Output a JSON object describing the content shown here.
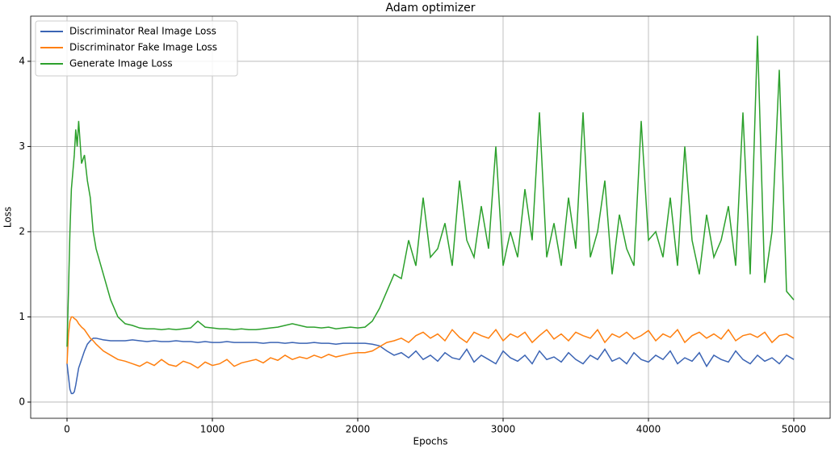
{
  "chart_data": {
    "type": "line",
    "title": "Adam optimizer",
    "x_label": "Epochs",
    "y_label": "Loss",
    "x": [
      0,
      10,
      20,
      30,
      40,
      50,
      60,
      70,
      80,
      100,
      120,
      140,
      160,
      180,
      200,
      250,
      300,
      350,
      400,
      450,
      500,
      550,
      600,
      650,
      700,
      750,
      800,
      850,
      900,
      950,
      1000,
      1050,
      1100,
      1150,
      1200,
      1250,
      1300,
      1350,
      1400,
      1450,
      1500,
      1550,
      1600,
      1650,
      1700,
      1750,
      1800,
      1850,
      1900,
      1950,
      2000,
      2050,
      2100,
      2150,
      2200,
      2250,
      2300,
      2350,
      2400,
      2450,
      2500,
      2550,
      2600,
      2650,
      2700,
      2750,
      2800,
      2850,
      2900,
      2950,
      3000,
      3050,
      3100,
      3150,
      3200,
      3250,
      3300,
      3350,
      3400,
      3450,
      3500,
      3550,
      3600,
      3650,
      3700,
      3750,
      3800,
      3850,
      3900,
      3950,
      4000,
      4050,
      4100,
      4150,
      4200,
      4250,
      4300,
      4350,
      4400,
      4450,
      4500,
      4550,
      4600,
      4650,
      4700,
      4750,
      4800,
      4850,
      4900,
      4950,
      5000
    ],
    "series": [
      {
        "name": "Discriminator Real Image Loss",
        "color": "#3b64b4",
        "values": [
          0.45,
          0.3,
          0.15,
          0.1,
          0.1,
          0.12,
          0.2,
          0.3,
          0.4,
          0.5,
          0.6,
          0.68,
          0.72,
          0.75,
          0.75,
          0.73,
          0.72,
          0.72,
          0.72,
          0.73,
          0.72,
          0.71,
          0.72,
          0.71,
          0.71,
          0.72,
          0.71,
          0.71,
          0.7,
          0.71,
          0.7,
          0.7,
          0.71,
          0.7,
          0.7,
          0.7,
          0.7,
          0.69,
          0.7,
          0.7,
          0.69,
          0.7,
          0.69,
          0.69,
          0.7,
          0.69,
          0.69,
          0.68,
          0.69,
          0.69,
          0.69,
          0.69,
          0.68,
          0.66,
          0.6,
          0.55,
          0.58,
          0.52,
          0.6,
          0.5,
          0.55,
          0.48,
          0.58,
          0.52,
          0.5,
          0.62,
          0.47,
          0.55,
          0.5,
          0.45,
          0.6,
          0.52,
          0.48,
          0.55,
          0.45,
          0.6,
          0.5,
          0.53,
          0.47,
          0.58,
          0.5,
          0.45,
          0.55,
          0.5,
          0.62,
          0.48,
          0.52,
          0.45,
          0.58,
          0.5,
          0.47,
          0.55,
          0.5,
          0.6,
          0.45,
          0.52,
          0.48,
          0.58,
          0.42,
          0.55,
          0.5,
          0.47,
          0.6,
          0.5,
          0.45,
          0.55,
          0.48,
          0.52,
          0.45,
          0.55,
          0.5
        ]
      },
      {
        "name": "Discriminator Fake Image Loss",
        "color": "#ff7f0e",
        "values": [
          0.45,
          0.8,
          0.95,
          1.0,
          1.0,
          0.98,
          0.97,
          0.95,
          0.92,
          0.88,
          0.85,
          0.8,
          0.75,
          0.72,
          0.68,
          0.6,
          0.55,
          0.5,
          0.48,
          0.45,
          0.42,
          0.47,
          0.43,
          0.5,
          0.44,
          0.42,
          0.48,
          0.45,
          0.4,
          0.47,
          0.43,
          0.45,
          0.5,
          0.42,
          0.46,
          0.48,
          0.5,
          0.46,
          0.52,
          0.49,
          0.55,
          0.5,
          0.53,
          0.51,
          0.55,
          0.52,
          0.56,
          0.53,
          0.55,
          0.57,
          0.58,
          0.58,
          0.6,
          0.65,
          0.7,
          0.72,
          0.75,
          0.7,
          0.78,
          0.82,
          0.75,
          0.8,
          0.72,
          0.85,
          0.76,
          0.7,
          0.82,
          0.78,
          0.75,
          0.85,
          0.72,
          0.8,
          0.76,
          0.82,
          0.7,
          0.78,
          0.85,
          0.74,
          0.8,
          0.72,
          0.82,
          0.78,
          0.75,
          0.85,
          0.7,
          0.8,
          0.76,
          0.82,
          0.74,
          0.78,
          0.84,
          0.72,
          0.8,
          0.76,
          0.85,
          0.7,
          0.78,
          0.82,
          0.75,
          0.8,
          0.74,
          0.85,
          0.72,
          0.78,
          0.8,
          0.76,
          0.82,
          0.7,
          0.78,
          0.8,
          0.75
        ]
      },
      {
        "name": "Generate Image Loss",
        "color": "#2ca02c",
        "values": [
          0.65,
          1.3,
          2.0,
          2.5,
          2.7,
          2.9,
          3.2,
          3.0,
          3.3,
          2.8,
          2.9,
          2.6,
          2.4,
          2.0,
          1.8,
          1.5,
          1.2,
          1.0,
          0.92,
          0.9,
          0.87,
          0.86,
          0.86,
          0.85,
          0.86,
          0.85,
          0.86,
          0.87,
          0.95,
          0.88,
          0.87,
          0.86,
          0.86,
          0.85,
          0.86,
          0.85,
          0.85,
          0.86,
          0.87,
          0.88,
          0.9,
          0.92,
          0.9,
          0.88,
          0.88,
          0.87,
          0.88,
          0.86,
          0.87,
          0.88,
          0.87,
          0.88,
          0.95,
          1.1,
          1.3,
          1.5,
          1.45,
          1.9,
          1.6,
          2.4,
          1.7,
          1.8,
          2.1,
          1.6,
          2.6,
          1.9,
          1.7,
          2.3,
          1.8,
          3.0,
          1.6,
          2.0,
          1.7,
          2.5,
          1.9,
          3.4,
          1.7,
          2.1,
          1.6,
          2.4,
          1.8,
          3.4,
          1.7,
          2.0,
          2.6,
          1.5,
          2.2,
          1.8,
          1.6,
          3.3,
          1.9,
          2.0,
          1.7,
          2.4,
          1.6,
          3.0,
          1.9,
          1.5,
          2.2,
          1.7,
          1.9,
          2.3,
          1.6,
          3.4,
          1.5,
          4.3,
          1.4,
          2.0,
          3.9,
          1.3,
          1.2
        ]
      }
    ],
    "xlim": [
      -250,
      5250
    ],
    "ylim": [
      -0.19,
      4.53
    ],
    "xticks": [
      0,
      1000,
      2000,
      3000,
      4000,
      5000
    ],
    "yticks": [
      0,
      1,
      2,
      3,
      4
    ],
    "grid": true,
    "legend": "upper left"
  }
}
